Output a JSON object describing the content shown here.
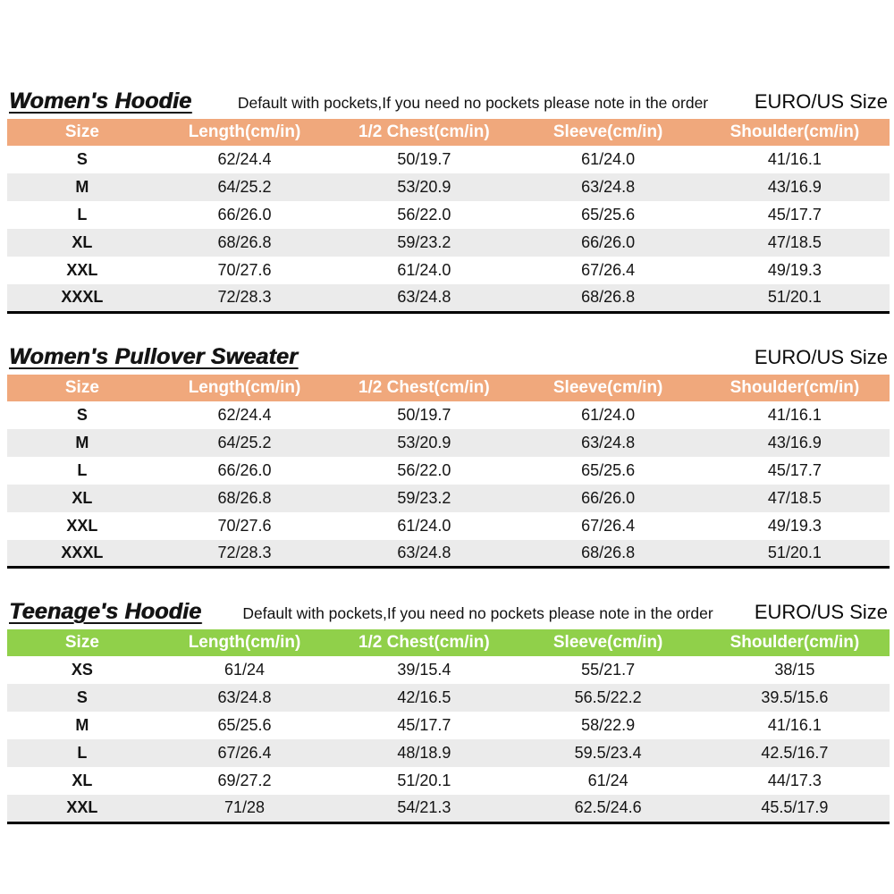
{
  "shared": {
    "colors": {
      "orange_header_bg": "#f0a87c",
      "green_header_bg": "#90d04a",
      "stripe_row_bg": "#ebebeb",
      "header_text": "#ffffff",
      "body_text": "#141414",
      "table_bottom_border": "#000000"
    }
  },
  "tables": [
    {
      "id": "womens-hoodie",
      "title": "Women's Hoodie",
      "note": "Default with pockets,If you need no pockets please note in the order",
      "euro_us_label": "EURO/US Size",
      "theme": "orange",
      "columns": [
        "Size",
        "Length(cm/in)",
        "1/2 Chest(cm/in)",
        "Sleeve(cm/in)",
        "Shoulder(cm/in)"
      ],
      "rows": [
        [
          "S",
          "62/24.4",
          "50/19.7",
          "61/24.0",
          "41/16.1"
        ],
        [
          "M",
          "64/25.2",
          "53/20.9",
          "63/24.8",
          "43/16.9"
        ],
        [
          "L",
          "66/26.0",
          "56/22.0",
          "65/25.6",
          "45/17.7"
        ],
        [
          "XL",
          "68/26.8",
          "59/23.2",
          "66/26.0",
          "47/18.5"
        ],
        [
          "XXL",
          "70/27.6",
          "61/24.0",
          "67/26.4",
          "49/19.3"
        ],
        [
          "XXXL",
          "72/28.3",
          "63/24.8",
          "68/26.8",
          "51/20.1"
        ]
      ]
    },
    {
      "id": "womens-pullover-sweater",
      "title": "Women's Pullover Sweater",
      "note": "",
      "euro_us_label": "EURO/US Size",
      "theme": "orange",
      "columns": [
        "Size",
        "Length(cm/in)",
        "1/2 Chest(cm/in)",
        "Sleeve(cm/in)",
        "Shoulder(cm/in)"
      ],
      "rows": [
        [
          "S",
          "62/24.4",
          "50/19.7",
          "61/24.0",
          "41/16.1"
        ],
        [
          "M",
          "64/25.2",
          "53/20.9",
          "63/24.8",
          "43/16.9"
        ],
        [
          "L",
          "66/26.0",
          "56/22.0",
          "65/25.6",
          "45/17.7"
        ],
        [
          "XL",
          "68/26.8",
          "59/23.2",
          "66/26.0",
          "47/18.5"
        ],
        [
          "XXL",
          "70/27.6",
          "61/24.0",
          "67/26.4",
          "49/19.3"
        ],
        [
          "XXXL",
          "72/28.3",
          "63/24.8",
          "68/26.8",
          "51/20.1"
        ]
      ]
    },
    {
      "id": "teenages-hoodie",
      "title": "Teenage's Hoodie",
      "note": "Default with pockets,If you need no pockets please note in the order",
      "euro_us_label": "EURO/US Size",
      "theme": "green",
      "columns": [
        "Size",
        "Length(cm/in)",
        "1/2 Chest(cm/in)",
        "Sleeve(cm/in)",
        "Shoulder(cm/in)"
      ],
      "rows": [
        [
          "XS",
          "61/24",
          "39/15.4",
          "55/21.7",
          "38/15"
        ],
        [
          "S",
          "63/24.8",
          "42/16.5",
          "56.5/22.2",
          "39.5/15.6"
        ],
        [
          "M",
          "65/25.6",
          "45/17.7",
          "58/22.9",
          "41/16.1"
        ],
        [
          "L",
          "67/26.4",
          "48/18.9",
          "59.5/23.4",
          "42.5/16.7"
        ],
        [
          "XL",
          "69/27.2",
          "51/20.1",
          "61/24",
          "44/17.3"
        ],
        [
          "XXL",
          "71/28",
          "54/21.3",
          "62.5/24.6",
          "45.5/17.9"
        ]
      ]
    }
  ]
}
